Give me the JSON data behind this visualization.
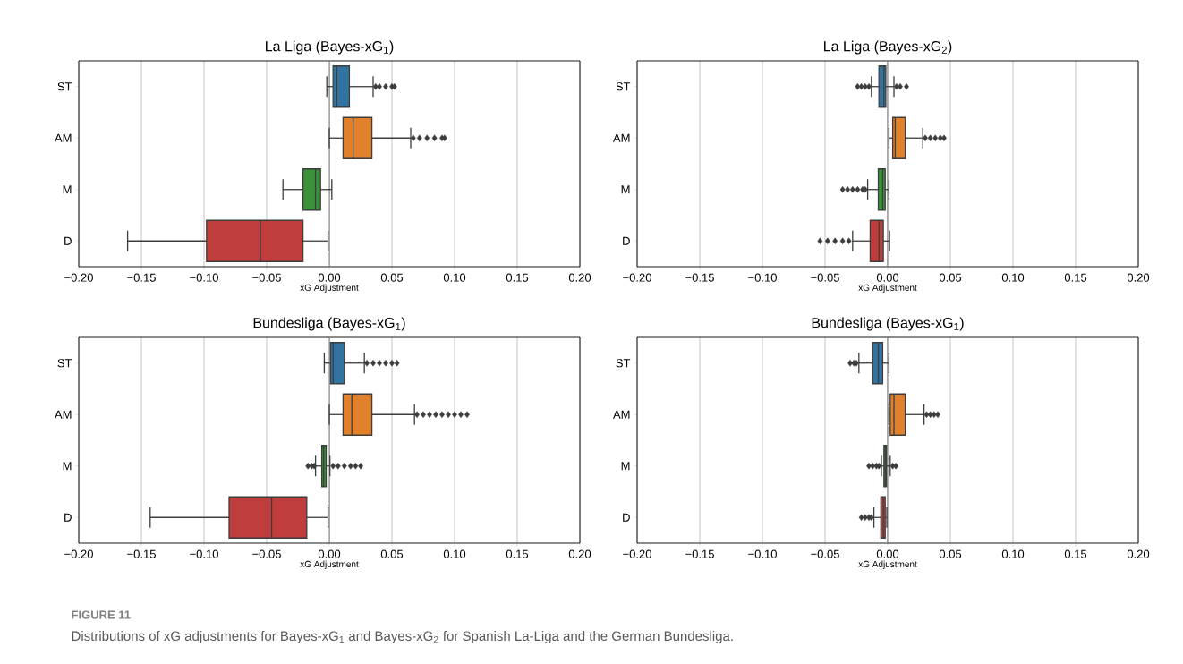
{
  "chart_data": [
    {
      "type": "box",
      "title": "La Liga (Bayes-xG$_{1}$)",
      "xlabel": "xG Adjustment",
      "orientation": "horizontal",
      "categories": [
        "ST",
        "AM",
        "M",
        "D"
      ],
      "colors": [
        "#3274a1",
        "#e1812c",
        "#3a923a",
        "#c03d3e"
      ],
      "boxes": [
        {
          "low": -0.002,
          "q1": 0.003,
          "median": 0.006,
          "q3": 0.016,
          "high": 0.035,
          "outliers": [
            0.037,
            0.04,
            0.045,
            0.05,
            0.052
          ]
        },
        {
          "low": 0.0,
          "q1": 0.011,
          "median": 0.019,
          "q3": 0.034,
          "high": 0.065,
          "outliers": [
            0.067,
            0.072,
            0.078,
            0.084,
            0.09,
            0.092
          ]
        },
        {
          "low": -0.037,
          "q1": -0.021,
          "median": -0.011,
          "q3": -0.007,
          "high": 0.002
        },
        {
          "low": -0.161,
          "q1": -0.098,
          "median": -0.055,
          "q3": -0.021,
          "high": -0.001
        }
      ],
      "xlim": [
        -0.2,
        0.2
      ],
      "xticks": [
        {
          "value": -0.2,
          "label": "−0.20"
        },
        {
          "value": -0.15,
          "label": "−0.15"
        },
        {
          "value": -0.1,
          "label": "−0.10"
        },
        {
          "value": -0.05,
          "label": "−0.05"
        },
        {
          "value": 0,
          "label": "0.00"
        },
        {
          "value": 0.05,
          "label": "0.05"
        },
        {
          "value": 0.1,
          "label": "0.10"
        },
        {
          "value": 0.15,
          "label": "0.15"
        },
        {
          "value": 0.2,
          "label": "0.20"
        }
      ],
      "grid": "x",
      "marker": "diamond",
      "ref_lines": [
        {
          "axis": "x",
          "value": 0,
          "color": "#808080"
        }
      ]
    },
    {
      "type": "box",
      "title": "La Liga (Bayes-xG$_{2}$)",
      "xlabel": "xG Adjustment",
      "orientation": "horizontal",
      "categories": [
        "ST",
        "AM",
        "M",
        "D"
      ],
      "colors": [
        "#3274a1",
        "#e1812c",
        "#3a923a",
        "#c03d3e"
      ],
      "boxes": [
        {
          "low": -0.013,
          "q1": -0.007,
          "median": -0.003,
          "q3": -0.0015,
          "high": 0.005,
          "outliers": [
            -0.024,
            -0.021,
            -0.018,
            -0.015,
            0.007,
            0.01,
            0.015
          ]
        },
        {
          "low": 0.001,
          "q1": 0.004,
          "median": 0.006,
          "q3": 0.014,
          "high": 0.028,
          "outliers": [
            0.03,
            0.034,
            0.038,
            0.042,
            0.045
          ]
        },
        {
          "low": -0.016,
          "q1": -0.0075,
          "median": -0.004,
          "q3": -0.002,
          "high": 0.001,
          "outliers": [
            -0.036,
            -0.032,
            -0.028,
            -0.024,
            -0.02,
            -0.018
          ]
        },
        {
          "low": -0.028,
          "q1": -0.014,
          "median": -0.007,
          "q3": -0.0035,
          "high": 0.0015,
          "outliers": [
            -0.054,
            -0.048,
            -0.042,
            -0.036,
            -0.031
          ]
        }
      ],
      "xlim": [
        -0.2,
        0.2
      ],
      "xticks": [
        {
          "value": -0.2,
          "label": "−0.20"
        },
        {
          "value": -0.15,
          "label": "−0.15"
        },
        {
          "value": -0.1,
          "label": "−0.10"
        },
        {
          "value": -0.05,
          "label": "−0.05"
        },
        {
          "value": 0,
          "label": "0.00"
        },
        {
          "value": 0.05,
          "label": "0.05"
        },
        {
          "value": 0.1,
          "label": "0.10"
        },
        {
          "value": 0.15,
          "label": "0.15"
        },
        {
          "value": 0.2,
          "label": "0.20"
        }
      ],
      "grid": "x",
      "marker": "diamond",
      "ref_lines": [
        {
          "axis": "x",
          "value": 0,
          "color": "#808080"
        }
      ]
    },
    {
      "type": "box",
      "title": "Bundesliga (Bayes-xG$_{1}$)",
      "xlabel": "xG Adjustment",
      "orientation": "horizontal",
      "categories": [
        "ST",
        "AM",
        "M",
        "D"
      ],
      "colors": [
        "#3274a1",
        "#e1812c",
        "#3a923a",
        "#c03d3e"
      ],
      "boxes": [
        {
          "low": -0.004,
          "q1": 0.001,
          "median": 0.003,
          "q3": 0.012,
          "high": 0.028,
          "outliers": [
            0.03,
            0.035,
            0.04,
            0.045,
            0.05,
            0.054
          ]
        },
        {
          "low": 0.0,
          "q1": 0.011,
          "median": 0.018,
          "q3": 0.034,
          "high": 0.068,
          "outliers": [
            0.07,
            0.075,
            0.08,
            0.085,
            0.09,
            0.095,
            0.1,
            0.105,
            0.11
          ]
        },
        {
          "low": -0.011,
          "q1": -0.006,
          "median": -0.0045,
          "q3": -0.0025,
          "high": 0.0005,
          "outliers": [
            -0.017,
            -0.014,
            -0.012,
            0.003,
            0.007,
            0.012,
            0.017,
            0.021,
            0.025
          ]
        },
        {
          "low": -0.143,
          "q1": -0.08,
          "median": -0.046,
          "q3": -0.018,
          "high": -0.001
        }
      ],
      "xlim": [
        -0.2,
        0.2
      ],
      "xticks": [
        {
          "value": -0.2,
          "label": "−0.20"
        },
        {
          "value": -0.15,
          "label": "−0.15"
        },
        {
          "value": -0.1,
          "label": "−0.10"
        },
        {
          "value": -0.05,
          "label": "−0.05"
        },
        {
          "value": 0,
          "label": "0.00"
        },
        {
          "value": 0.05,
          "label": "0.05"
        },
        {
          "value": 0.1,
          "label": "0.10"
        },
        {
          "value": 0.15,
          "label": "0.15"
        },
        {
          "value": 0.2,
          "label": "0.20"
        }
      ],
      "grid": "x",
      "marker": "diamond",
      "ref_lines": [
        {
          "axis": "x",
          "value": 0,
          "color": "#808080"
        }
      ]
    },
    {
      "type": "box",
      "title": "Bundesliga (Bayes-xG$_{1}$)",
      "xlabel": "xG Adjustment",
      "orientation": "horizontal",
      "categories": [
        "ST",
        "AM",
        "M",
        "D"
      ],
      "colors": [
        "#3274a1",
        "#e1812c",
        "#3a923a",
        "#c03d3e"
      ],
      "boxes": [
        {
          "low": -0.023,
          "q1": -0.012,
          "median": -0.0075,
          "q3": -0.004,
          "high": 0.001,
          "outliers": [
            -0.03,
            -0.027,
            -0.025
          ]
        },
        {
          "low": 0.001,
          "q1": 0.002,
          "median": 0.005,
          "q3": 0.014,
          "high": 0.029,
          "outliers": [
            0.031,
            0.034,
            0.037,
            0.04
          ]
        },
        {
          "low": -0.005,
          "q1": -0.003,
          "median": -0.002,
          "q3": -0.001,
          "high": 0.002,
          "outliers": [
            -0.015,
            -0.012,
            -0.009,
            -0.007,
            0.004,
            0.0065
          ]
        },
        {
          "low": -0.011,
          "q1": -0.0055,
          "median": -0.0035,
          "q3": -0.002,
          "high": -0.0007,
          "outliers": [
            -0.021,
            -0.018,
            -0.015,
            -0.013
          ]
        }
      ],
      "xlim": [
        -0.2,
        0.2
      ],
      "xticks": [
        {
          "value": -0.2,
          "label": "−0.20"
        },
        {
          "value": -0.15,
          "label": "−0.15"
        },
        {
          "value": -0.1,
          "label": "−0.10"
        },
        {
          "value": -0.05,
          "label": "−0.05"
        },
        {
          "value": 0,
          "label": "0.00"
        },
        {
          "value": 0.05,
          "label": "0.05"
        },
        {
          "value": 0.1,
          "label": "0.10"
        },
        {
          "value": 0.15,
          "label": "0.15"
        },
        {
          "value": 0.2,
          "label": "0.20"
        }
      ],
      "grid": "x",
      "marker": "diamond",
      "ref_lines": [
        {
          "axis": "x",
          "value": 0,
          "color": "#808080"
        }
      ],
      "annotations": [
        "FIGURE 11",
        "Distributions of xG adjustments for Bayes-xG$_{1}$ and Bayes-xG$_{2}$ for Spanish La-Liga and the German Bundesliga."
      ]
    }
  ]
}
